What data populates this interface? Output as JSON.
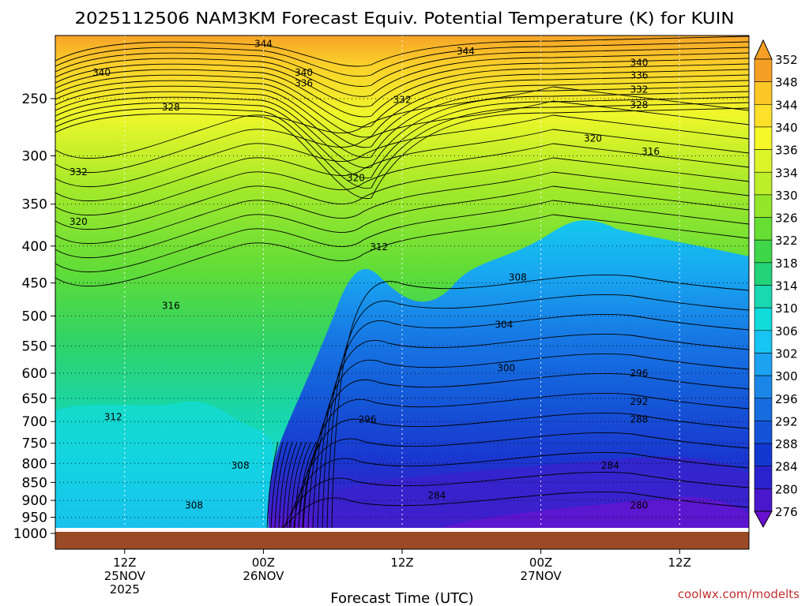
{
  "header": {
    "title": "2025112506 NAM3KM Forecast Equiv. Potential Temperature (K) for KUIN"
  },
  "footer": {
    "credit": "coolwx.com/modelts",
    "credit_color": "#c03030"
  },
  "chart_data": {
    "type": "heatmap",
    "title": "2025112506 NAM3KM Forecast Equiv. Potential Temperature (K) for KUIN",
    "xlabel": "Forecast Time (UTC)",
    "ylabel": "",
    "x_ticks": [
      {
        "hour": 6,
        "lines": [
          "12Z",
          "25NOV",
          "2025"
        ]
      },
      {
        "hour": 18,
        "lines": [
          "00Z",
          "26NOV"
        ]
      },
      {
        "hour": 30,
        "lines": [
          "12Z"
        ]
      },
      {
        "hour": 42,
        "lines": [
          "00Z",
          "27NOV"
        ]
      },
      {
        "hour": 54,
        "lines": [
          "12Z"
        ]
      }
    ],
    "xlim_hours": [
      0,
      60
    ],
    "y_axis": "pressure (inverted)",
    "y_ticks": [
      250,
      300,
      350,
      400,
      450,
      500,
      550,
      600,
      650,
      700,
      750,
      800,
      850,
      900,
      950,
      1000
    ],
    "ylim": [
      200,
      1000
    ],
    "grid": true,
    "surface_color": "#9a4b25",
    "colorbar": {
      "labels": [
        352,
        348,
        344,
        340,
        336,
        334,
        330,
        326,
        322,
        318,
        314,
        310,
        306,
        302,
        300,
        296,
        292,
        288,
        284,
        280,
        276
      ],
      "colors": [
        "#f5a025",
        "#fbc626",
        "#fde02a",
        "#f6f829",
        "#dcf52a",
        "#bcee2a",
        "#94e62a",
        "#66de33",
        "#3fd64a",
        "#22d37a",
        "#1ad9b2",
        "#11dcdc",
        "#18c4f2",
        "#1ba2f0",
        "#1a86e8",
        "#176ce0",
        "#1553d8",
        "#1238d2",
        "#2a22cc",
        "#4a18cc",
        "#6a10d0"
      ]
    },
    "contour_labels": [
      {
        "text": "344",
        "hour": 18.0,
        "p": 210
      },
      {
        "text": "344",
        "hour": 35.5,
        "p": 215
      },
      {
        "text": "340",
        "hour": 4.0,
        "p": 230
      },
      {
        "text": "340",
        "hour": 21.5,
        "p": 230
      },
      {
        "text": "336",
        "hour": 21.5,
        "p": 238
      },
      {
        "text": "340",
        "hour": 50.5,
        "p": 223
      },
      {
        "text": "336",
        "hour": 50.5,
        "p": 232
      },
      {
        "text": "332",
        "hour": 50.5,
        "p": 243
      },
      {
        "text": "328",
        "hour": 50.5,
        "p": 255
      },
      {
        "text": "328",
        "hour": 10.0,
        "p": 257
      },
      {
        "text": "332",
        "hour": 30.0,
        "p": 251
      },
      {
        "text": "320",
        "hour": 46.5,
        "p": 284
      },
      {
        "text": "316",
        "hour": 51.5,
        "p": 296
      },
      {
        "text": "332",
        "hour": 2.0,
        "p": 316
      },
      {
        "text": "320",
        "hour": 26.0,
        "p": 322
      },
      {
        "text": "320",
        "hour": 2.0,
        "p": 370
      },
      {
        "text": "312",
        "hour": 28.0,
        "p": 401
      },
      {
        "text": "308",
        "hour": 40.0,
        "p": 442
      },
      {
        "text": "316",
        "hour": 10.0,
        "p": 484
      },
      {
        "text": "304",
        "hour": 38.8,
        "p": 514
      },
      {
        "text": "300",
        "hour": 39.0,
        "p": 590
      },
      {
        "text": "296",
        "hour": 50.5,
        "p": 600
      },
      {
        "text": "292",
        "hour": 50.5,
        "p": 657
      },
      {
        "text": "288",
        "hour": 50.5,
        "p": 695
      },
      {
        "text": "312",
        "hour": 5.0,
        "p": 690
      },
      {
        "text": "296",
        "hour": 27.0,
        "p": 695
      },
      {
        "text": "308",
        "hour": 16.0,
        "p": 805
      },
      {
        "text": "284",
        "hour": 48.0,
        "p": 805
      },
      {
        "text": "284",
        "hour": 33.0,
        "p": 886
      },
      {
        "text": "308",
        "hour": 12.0,
        "p": 914
      },
      {
        "text": "280",
        "hour": 50.5,
        "p": 915
      }
    ]
  }
}
